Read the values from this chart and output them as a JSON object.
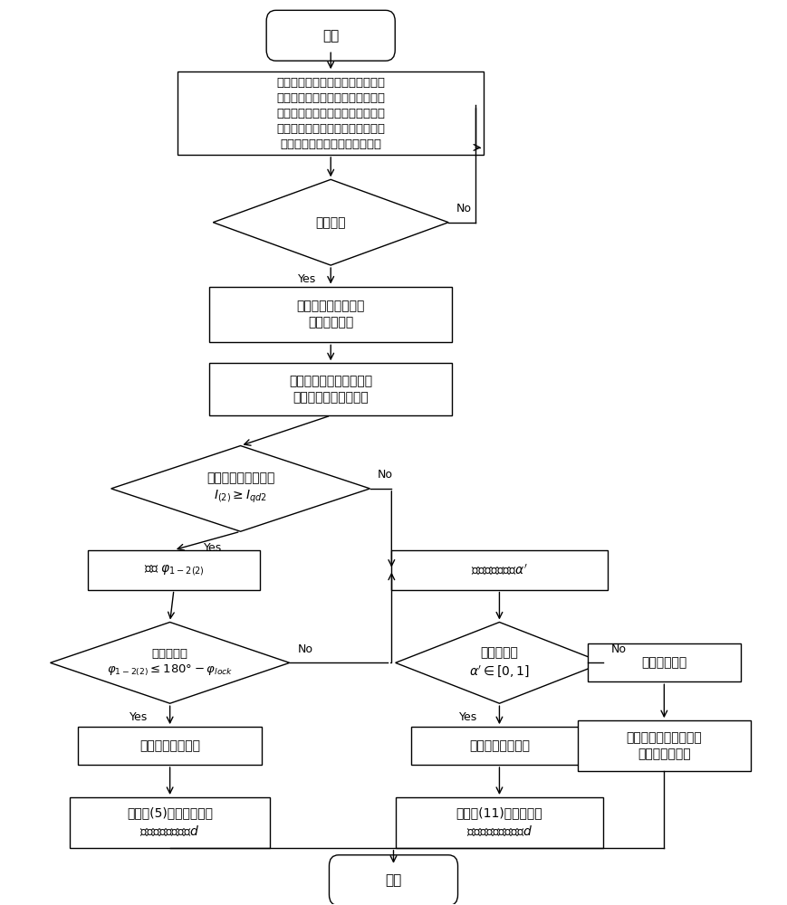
{
  "bg_color": "#ffffff",
  "start_text": "开始",
  "end_text": "结束",
  "init_text": "对花瓣环网主干线上各线路和保护\n编号，在集中式信息处理中心中录\n入主干线上所有线路的长度、单位\n长度正序阻抗信息和单位长度负序\n阻抗信息，以及负序电流门槛值",
  "protect_text": "保护启动",
  "send_text": "向信息处理中心发出\n发生故障信号",
  "receive_text": "信息处理信息发出指令，\n接受正、负序电流信息",
  "neg_curr_text1": "流过保护的负序电流",
  "neg_curr_text2": "$I_{(2)} \\geq I_{qd2}$",
  "calc_phi_text": "计算 $\\varphi_{1-2(2)}$",
  "ls1_text1": "有线路满足",
  "ls1_text2": "$\\varphi_{1-2(2)} \\leq 180\\degree - \\varphi_{lock}$",
  "fl1_text": "该线路为故障线路",
  "cd1_text": "根据式(5)计算故障点到\n奇数号保护的距离$d$",
  "calc_alpha_text": "计算各线路对应$\\alpha'$",
  "ls2_text1": "有线路满足",
  "ls2_text2": "$\\alpha' \\in [0,1]$",
  "fl2_text": "该线路为故障线路",
  "cd2_text": "根据式(11)计算故障点\n到奇数号保护的距离$d$",
  "nf_text": "线路上无故障",
  "bp_text": "母线保护动作，故障位\n置位于该母线处",
  "yes_label": "Yes",
  "no_label": "No"
}
